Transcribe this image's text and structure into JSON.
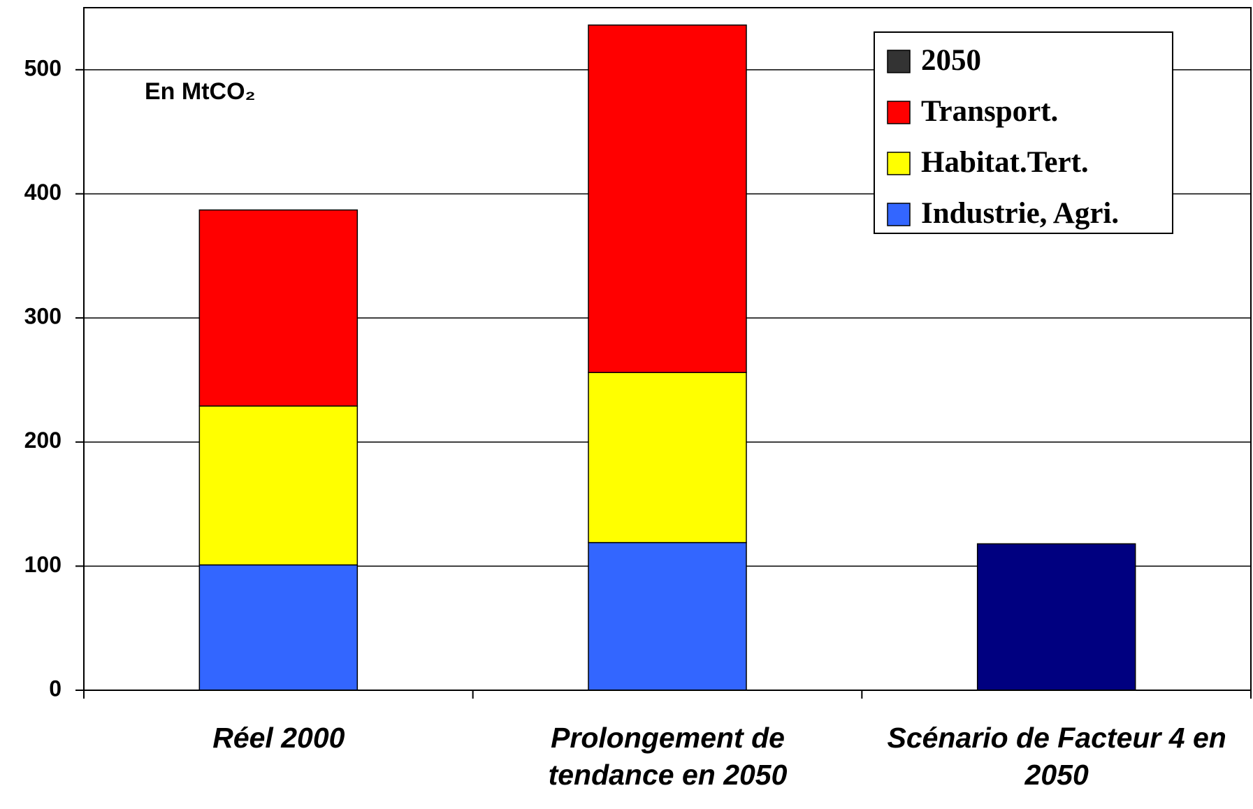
{
  "chart_data": {
    "type": "stacked_bar",
    "annotation": "En MtCO₂",
    "categories": [
      "Réel 2000",
      "Prolongement de tendance en 2050",
      "Scénario de Facteur 4 en 2050"
    ],
    "series": [
      {
        "name": "2050",
        "color": "#000080",
        "legend_color": "#333333",
        "values": [
          null,
          null,
          118
        ]
      },
      {
        "name": "Transport.",
        "color": "#ff0000",
        "values": [
          158,
          280,
          null
        ]
      },
      {
        "name": "Habitat.Tert.",
        "color": "#ffff00",
        "values": [
          128,
          137,
          null
        ]
      },
      {
        "name": "Industrie, Agri.",
        "color": "#3366ff",
        "values": [
          101,
          119,
          null
        ]
      }
    ],
    "ylim": [
      0,
      550
    ],
    "yticks": [
      0,
      100,
      200,
      300,
      400,
      500
    ],
    "grid": true,
    "legend": "top-right"
  }
}
